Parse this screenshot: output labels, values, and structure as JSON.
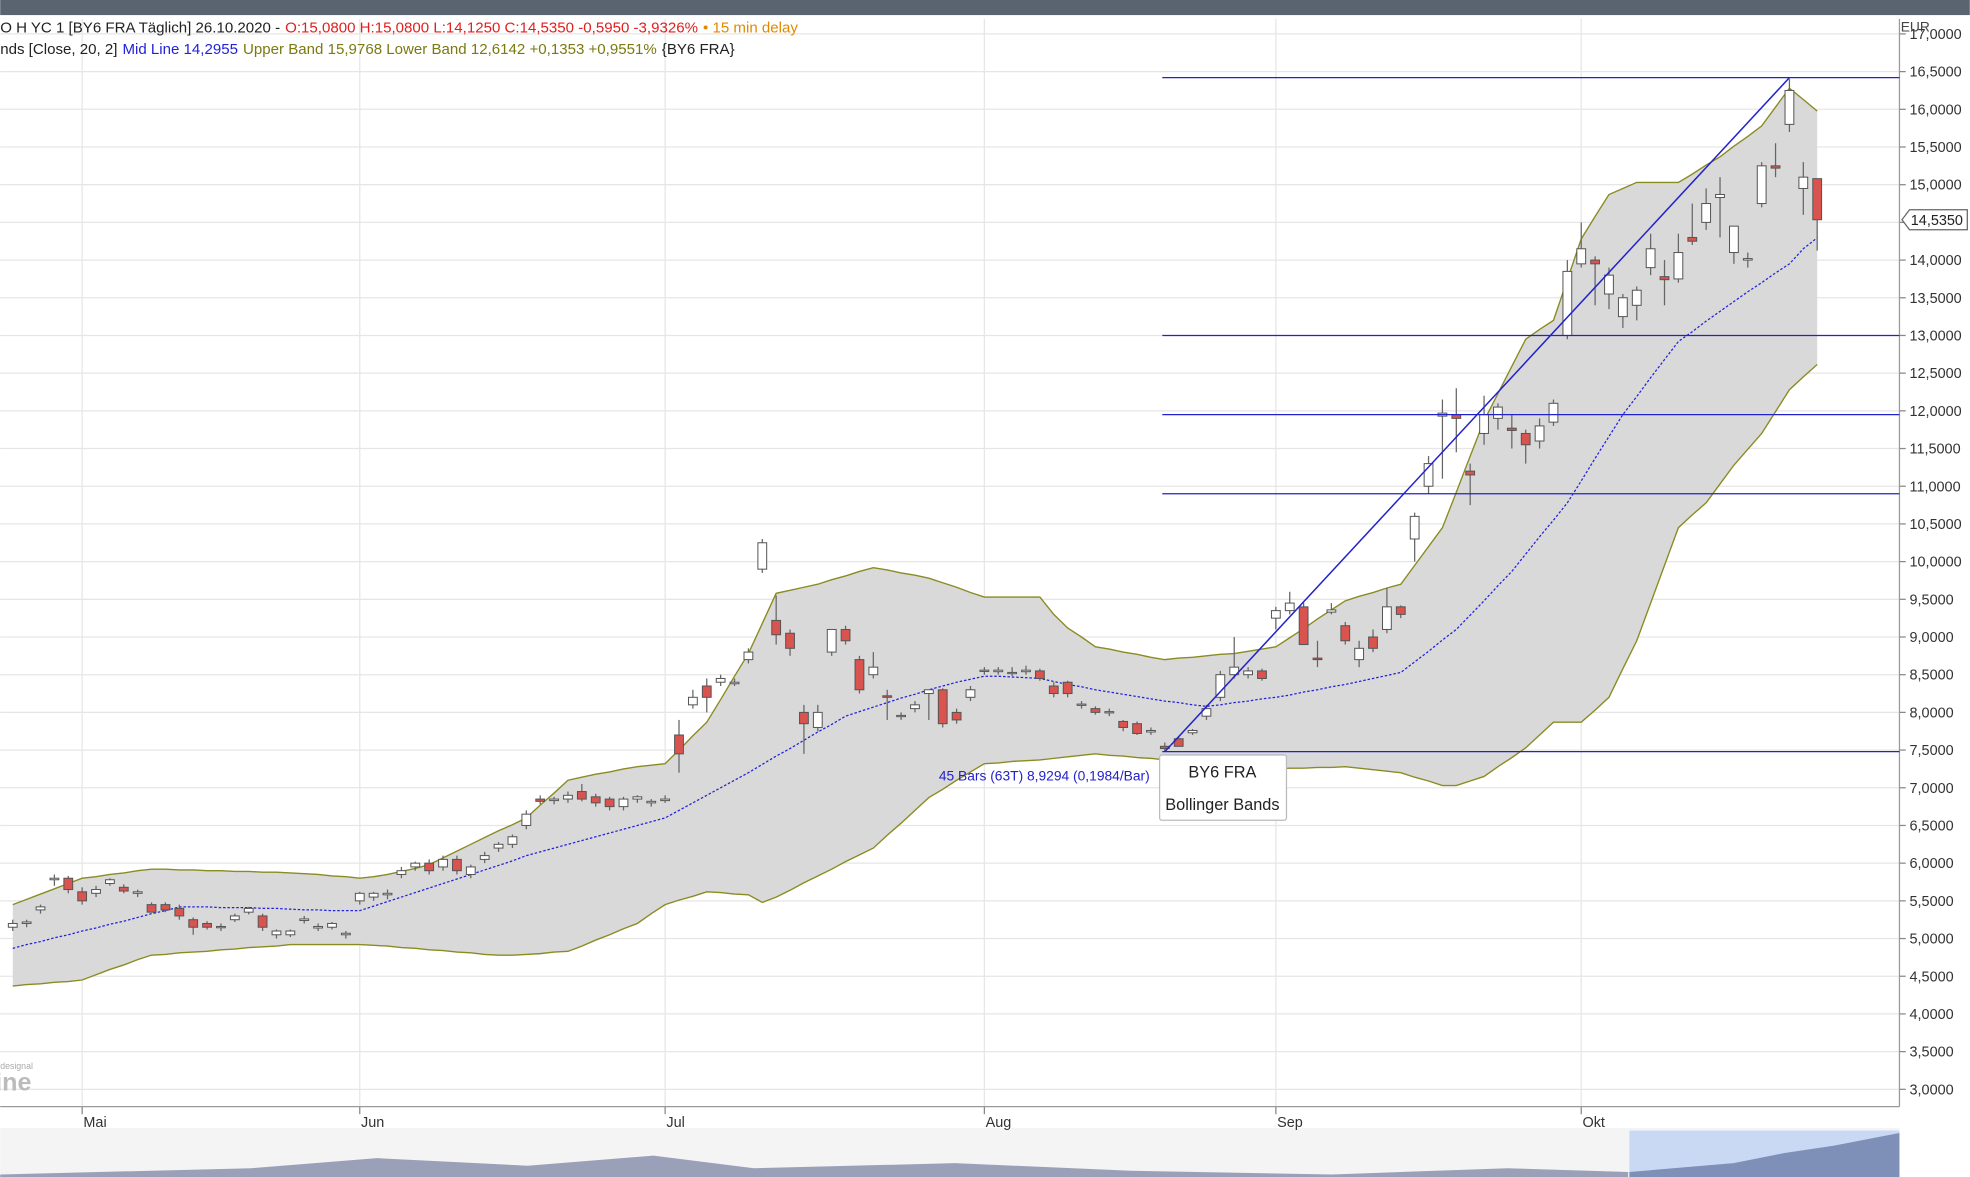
{
  "chart_data": {
    "type": "candlestick",
    "header": {
      "line1": {
        "info": "O H YC 1 [BY6 FRA Täglich] 26.10.2020 -",
        "quote": "O:15,0800 H:15,0800 L:14,1250 C:14,5350 -0,5950 -3,9326%",
        "delay": "• 15 min delay"
      },
      "line2": {
        "study": "nds [Close, 20, 2]",
        "mid": "Mid Line 14,2955",
        "bands": "Upper Band 15,9768 Lower Band 12,6142 +0,1353 +0,9551%",
        "symbol": "{BY6 FRA}"
      }
    },
    "currency": "EUR",
    "last_label": "14,5350",
    "watermark_top": "designal",
    "watermark": "ine",
    "annotation": "45 Bars (63T) 8,9294 (0,1984/Bar)",
    "tooltip": [
      "BY6 FRA",
      "Bollinger Bands"
    ],
    "up_color": "#ffffff",
    "down_color": "#d9534f",
    "mid_color": "#2222dd",
    "band_color": "#8b8b22",
    "fill_color": "#d9d9d9",
    "level_color": "#2222cc",
    "ylim": [
      2.77,
      17.2
    ],
    "yticks": [
      {
        "value": 17,
        "label": "17,0000"
      },
      {
        "value": 16.5,
        "label": "16,5000"
      },
      {
        "value": 16,
        "label": "16,0000"
      },
      {
        "value": 15.5,
        "label": "15,5000"
      },
      {
        "value": 15,
        "label": "15,0000"
      },
      {
        "value": 14.5,
        "label": "14,5000"
      },
      {
        "value": 14,
        "label": "14,0000"
      },
      {
        "value": 13.5,
        "label": "13,5000"
      },
      {
        "value": 13,
        "label": "13,0000"
      },
      {
        "value": 12.5,
        "label": "12,5000"
      },
      {
        "value": 12,
        "label": "12,0000"
      },
      {
        "value": 11.5,
        "label": "11,5000"
      },
      {
        "value": 11,
        "label": "11,0000"
      },
      {
        "value": 10.5,
        "label": "10,5000"
      },
      {
        "value": 10,
        "label": "10,0000"
      },
      {
        "value": 9.5,
        "label": "9,5000"
      },
      {
        "value": 9,
        "label": "9,0000"
      },
      {
        "value": 8.5,
        "label": "8,5000"
      },
      {
        "value": 8,
        "label": "8,0000"
      },
      {
        "value": 7.5,
        "label": "7,5000"
      },
      {
        "value": 7,
        "label": "7,0000"
      },
      {
        "value": 6.5,
        "label": "6,5000"
      },
      {
        "value": 6,
        "label": "6,0000"
      },
      {
        "value": 5.5,
        "label": "5,5000"
      },
      {
        "value": 5,
        "label": "5,0000"
      },
      {
        "value": 4.5,
        "label": "4,5000"
      },
      {
        "value": 4,
        "label": "4,0000"
      },
      {
        "value": 3.5,
        "label": "3,5000"
      },
      {
        "value": 3,
        "label": "3,0000"
      }
    ],
    "categories": [
      null,
      null,
      null,
      null,
      null,
      "Mai",
      null,
      null,
      null,
      null,
      null,
      null,
      null,
      null,
      null,
      null,
      null,
      null,
      null,
      null,
      null,
      null,
      null,
      null,
      null,
      "Jun",
      null,
      null,
      null,
      null,
      null,
      null,
      null,
      null,
      null,
      null,
      null,
      null,
      null,
      null,
      null,
      null,
      null,
      null,
      null,
      null,
      null,
      "Jul",
      null,
      null,
      null,
      null,
      null,
      null,
      null,
      null,
      null,
      null,
      null,
      null,
      null,
      null,
      null,
      null,
      null,
      null,
      null,
      null,
      null,
      null,
      "Aug",
      null,
      null,
      null,
      null,
      null,
      null,
      null,
      null,
      null,
      null,
      null,
      null,
      null,
      null,
      null,
      null,
      null,
      null,
      null,
      null,
      "Sep",
      null,
      null,
      null,
      null,
      null,
      null,
      null,
      null,
      null,
      null,
      null,
      null,
      null,
      null,
      null,
      null,
      null,
      null,
      null,
      null,
      null,
      "Okt",
      null,
      null,
      null,
      null,
      null,
      null,
      null,
      null,
      null,
      null,
      null,
      null,
      null,
      null,
      null,
      null,
      null
    ],
    "candles": [
      [
        5.15,
        5.25,
        5.1,
        5.2
      ],
      [
        5.2,
        5.25,
        5.15,
        5.22
      ],
      [
        5.38,
        5.45,
        5.33,
        5.42
      ],
      [
        5.78,
        5.85,
        5.7,
        5.8
      ],
      [
        5.8,
        5.83,
        5.6,
        5.65
      ],
      [
        5.62,
        5.68,
        5.45,
        5.5
      ],
      [
        5.6,
        5.7,
        5.55,
        5.65
      ],
      [
        5.73,
        5.8,
        5.7,
        5.78
      ],
      [
        5.68,
        5.72,
        5.6,
        5.63
      ],
      [
        5.6,
        5.65,
        5.55,
        5.62
      ],
      [
        5.45,
        5.48,
        5.35,
        5.35
      ],
      [
        5.45,
        5.48,
        5.35,
        5.38
      ],
      [
        5.4,
        5.45,
        5.25,
        5.3
      ],
      [
        5.25,
        5.28,
        5.05,
        5.15
      ],
      [
        5.2,
        5.23,
        5.12,
        5.15
      ],
      [
        5.15,
        5.2,
        5.1,
        5.16
      ],
      [
        5.25,
        5.33,
        5.22,
        5.3
      ],
      [
        5.35,
        5.42,
        5.32,
        5.4
      ],
      [
        5.3,
        5.33,
        5.1,
        5.15
      ],
      [
        5.05,
        5.12,
        5.0,
        5.1
      ],
      [
        5.05,
        5.12,
        5.02,
        5.1
      ],
      [
        5.24,
        5.3,
        5.2,
        5.26
      ],
      [
        5.14,
        5.2,
        5.1,
        5.16
      ],
      [
        5.15,
        5.22,
        5.12,
        5.2
      ],
      [
        5.05,
        5.1,
        5.0,
        5.07
      ],
      [
        5.5,
        5.62,
        5.45,
        5.6
      ],
      [
        5.55,
        5.62,
        5.5,
        5.6
      ],
      [
        5.58,
        5.65,
        5.52,
        5.6
      ],
      [
        5.85,
        5.95,
        5.8,
        5.9
      ],
      [
        5.95,
        6.02,
        5.9,
        6.0
      ],
      [
        6.0,
        6.05,
        5.85,
        5.9
      ],
      [
        5.95,
        6.1,
        5.9,
        6.05
      ],
      [
        6.05,
        6.1,
        5.85,
        5.9
      ],
      [
        5.85,
        5.98,
        5.8,
        5.95
      ],
      [
        6.05,
        6.15,
        6.0,
        6.1
      ],
      [
        6.2,
        6.28,
        6.15,
        6.25
      ],
      [
        6.25,
        6.38,
        6.2,
        6.35
      ],
      [
        6.5,
        6.7,
        6.45,
        6.65
      ],
      [
        6.85,
        6.9,
        6.78,
        6.82
      ],
      [
        6.83,
        6.88,
        6.78,
        6.85
      ],
      [
        6.85,
        6.95,
        6.8,
        6.9
      ],
      [
        6.95,
        7.05,
        6.82,
        6.85
      ],
      [
        6.88,
        6.92,
        6.75,
        6.8
      ],
      [
        6.85,
        6.88,
        6.7,
        6.75
      ],
      [
        6.75,
        6.88,
        6.7,
        6.85
      ],
      [
        6.85,
        6.9,
        6.8,
        6.88
      ],
      [
        6.8,
        6.85,
        6.75,
        6.82
      ],
      [
        6.83,
        6.9,
        6.8,
        6.85
      ],
      [
        7.7,
        7.9,
        7.2,
        7.45
      ],
      [
        8.1,
        8.3,
        8.05,
        8.2
      ],
      [
        8.35,
        8.45,
        8.0,
        8.2
      ],
      [
        8.4,
        8.5,
        8.35,
        8.45
      ],
      [
        8.38,
        8.45,
        8.35,
        8.4
      ],
      [
        8.7,
        8.85,
        8.65,
        8.8
      ],
      [
        9.9,
        10.3,
        9.85,
        10.25
      ],
      [
        9.22,
        9.55,
        8.9,
        9.03
      ],
      [
        9.05,
        9.1,
        8.75,
        8.85
      ],
      [
        8.0,
        8.1,
        7.45,
        7.85
      ],
      [
        7.8,
        8.1,
        7.75,
        8.0
      ],
      [
        8.8,
        9.1,
        8.75,
        9.1
      ],
      [
        9.1,
        9.15,
        8.9,
        8.95
      ],
      [
        8.7,
        8.75,
        8.25,
        8.3
      ],
      [
        8.5,
        8.8,
        8.45,
        8.6
      ],
      [
        8.22,
        8.3,
        7.9,
        8.2
      ],
      [
        7.95,
        8.0,
        7.9,
        7.96
      ],
      [
        8.05,
        8.15,
        8.0,
        8.1
      ],
      [
        8.25,
        8.3,
        7.9,
        8.3
      ],
      [
        8.3,
        8.32,
        7.8,
        7.85
      ],
      [
        8.0,
        8.05,
        7.85,
        7.9
      ],
      [
        8.2,
        8.35,
        8.15,
        8.3
      ],
      [
        8.55,
        8.6,
        8.5,
        8.56
      ],
      [
        8.54,
        8.6,
        8.5,
        8.56
      ],
      [
        8.52,
        8.6,
        8.48,
        8.53
      ],
      [
        8.54,
        8.62,
        8.5,
        8.56
      ],
      [
        8.55,
        8.58,
        8.42,
        8.45
      ],
      [
        8.35,
        8.4,
        8.2,
        8.25
      ],
      [
        8.4,
        8.42,
        8.2,
        8.25
      ],
      [
        8.1,
        8.15,
        8.05,
        8.11
      ],
      [
        8.05,
        8.08,
        7.97,
        8.0
      ],
      [
        8.0,
        8.05,
        7.95,
        8.01
      ],
      [
        7.88,
        7.9,
        7.75,
        7.8
      ],
      [
        7.85,
        7.88,
        7.7,
        7.72
      ],
      [
        7.74,
        7.8,
        7.7,
        7.76
      ],
      [
        7.55,
        7.6,
        7.48,
        7.52
      ],
      [
        7.65,
        7.68,
        7.55,
        7.55
      ],
      [
        7.73,
        7.78,
        7.7,
        7.76
      ],
      [
        7.95,
        8.1,
        7.9,
        8.05
      ],
      [
        8.2,
        8.55,
        8.15,
        8.5
      ],
      [
        8.5,
        9.0,
        8.45,
        8.6
      ],
      [
        8.5,
        8.6,
        8.45,
        8.55
      ],
      [
        8.55,
        8.58,
        8.42,
        8.45
      ],
      [
        9.25,
        9.4,
        9.1,
        9.35
      ],
      [
        9.35,
        9.6,
        9.3,
        9.45
      ],
      [
        9.4,
        9.45,
        8.9,
        8.9
      ],
      [
        8.72,
        8.95,
        8.6,
        8.7
      ],
      [
        9.33,
        9.45,
        9.3,
        9.36
      ],
      [
        9.15,
        9.2,
        8.9,
        8.95
      ],
      [
        8.7,
        8.95,
        8.6,
        8.85
      ],
      [
        9.0,
        9.1,
        8.8,
        8.85
      ],
      [
        9.1,
        9.65,
        9.05,
        9.4
      ],
      [
        9.4,
        9.42,
        9.25,
        9.3
      ],
      [
        10.3,
        10.65,
        10.0,
        10.6
      ],
      [
        11.0,
        11.4,
        10.9,
        11.3
      ],
      [
        11.93,
        12.15,
        11.1,
        11.97
      ],
      [
        11.95,
        12.3,
        11.45,
        11.9
      ],
      [
        11.2,
        11.3,
        10.75,
        11.15
      ],
      [
        11.7,
        12.2,
        11.55,
        11.95
      ],
      [
        11.9,
        12.1,
        11.75,
        12.05
      ],
      [
        11.77,
        11.95,
        11.5,
        11.74
      ],
      [
        11.7,
        11.75,
        11.3,
        11.55
      ],
      [
        11.6,
        11.9,
        11.5,
        11.8
      ],
      [
        11.85,
        12.15,
        11.8,
        12.1
      ],
      [
        13.0,
        14.0,
        12.95,
        13.85
      ],
      [
        13.95,
        14.5,
        13.9,
        14.15
      ],
      [
        14.0,
        14.05,
        13.4,
        13.95
      ],
      [
        13.55,
        13.9,
        13.35,
        13.8
      ],
      [
        13.25,
        13.55,
        13.1,
        13.5
      ],
      [
        13.4,
        13.65,
        13.2,
        13.6
      ],
      [
        13.9,
        14.35,
        13.8,
        14.15
      ],
      [
        13.78,
        14.0,
        13.4,
        13.74
      ],
      [
        13.75,
        14.35,
        13.7,
        14.1
      ],
      [
        14.3,
        14.75,
        14.2,
        14.25
      ],
      [
        14.5,
        14.95,
        14.4,
        14.75
      ],
      [
        14.83,
        15.1,
        14.3,
        14.87
      ],
      [
        14.1,
        14.45,
        13.95,
        14.45
      ],
      [
        14.0,
        14.1,
        13.9,
        14.02
      ],
      [
        14.75,
        15.3,
        14.7,
        15.25
      ],
      [
        15.25,
        15.55,
        15.1,
        15.22
      ],
      [
        15.8,
        16.4,
        15.7,
        16.25
      ],
      [
        14.95,
        15.3,
        14.6,
        15.1
      ],
      [
        15.08,
        15.08,
        14.125,
        14.535
      ]
    ],
    "mid": [
      4.87,
      4.92,
      4.96,
      5.01,
      5.05,
      5.1,
      5.14,
      5.19,
      5.23,
      5.28,
      5.33,
      5.37,
      5.42,
      5.42,
      5.42,
      5.41,
      5.41,
      5.41,
      5.4,
      5.4,
      5.39,
      5.38,
      5.38,
      5.37,
      5.37,
      5.37,
      5.43,
      5.49,
      5.55,
      5.61,
      5.67,
      5.73,
      5.79,
      5.85,
      5.91,
      5.97,
      6.03,
      6.1,
      6.15,
      6.2,
      6.25,
      6.3,
      6.35,
      6.4,
      6.45,
      6.5,
      6.55,
      6.6,
      6.7,
      6.8,
      6.9,
      7.0,
      7.1,
      7.2,
      7.31,
      7.42,
      7.52,
      7.63,
      7.74,
      7.84,
      7.95,
      8.01,
      8.07,
      8.13,
      8.19,
      8.24,
      8.3,
      8.35,
      8.4,
      8.44,
      8.48,
      8.48,
      8.47,
      8.46,
      8.45,
      8.41,
      8.37,
      8.34,
      8.3,
      8.27,
      8.24,
      8.21,
      8.18,
      8.15,
      8.13,
      8.1,
      8.08,
      8.1,
      8.13,
      8.15,
      8.18,
      8.2,
      8.23,
      8.27,
      8.3,
      8.34,
      8.37,
      8.41,
      8.45,
      8.49,
      8.53,
      8.67,
      8.81,
      8.96,
      9.1,
      9.29,
      9.48,
      9.68,
      9.87,
      10.1,
      10.33,
      10.55,
      10.78,
      11.07,
      11.37,
      11.66,
      11.95,
      12.19,
      12.44,
      12.68,
      12.92,
      13.05,
      13.19,
      13.32,
      13.45,
      13.58,
      13.7,
      13.83,
      13.95,
      14.15,
      14.2955
    ],
    "upper": [
      5.45,
      5.52,
      5.59,
      5.66,
      5.73,
      5.8,
      5.82,
      5.85,
      5.87,
      5.9,
      5.92,
      5.92,
      5.91,
      5.91,
      5.9,
      5.9,
      5.89,
      5.89,
      5.88,
      5.88,
      5.87,
      5.86,
      5.85,
      5.83,
      5.82,
      5.8,
      5.82,
      5.85,
      5.89,
      5.93,
      5.98,
      6.07,
      6.16,
      6.25,
      6.34,
      6.43,
      6.51,
      6.6,
      6.77,
      6.93,
      7.1,
      7.14,
      7.18,
      7.21,
      7.25,
      7.28,
      7.3,
      7.32,
      7.5,
      7.69,
      7.87,
      8.17,
      8.48,
      8.78,
      9.18,
      9.58,
      9.62,
      9.66,
      9.7,
      9.76,
      9.81,
      9.87,
      9.92,
      9.89,
      9.85,
      9.82,
      9.78,
      9.72,
      9.66,
      9.59,
      9.53,
      9.53,
      9.53,
      9.53,
      9.53,
      9.3,
      9.12,
      9.0,
      8.87,
      8.84,
      8.8,
      8.77,
      8.73,
      8.7,
      8.72,
      8.73,
      8.75,
      8.77,
      8.78,
      8.81,
      8.84,
      8.87,
      8.99,
      9.11,
      9.24,
      9.36,
      9.48,
      9.54,
      9.59,
      9.65,
      9.7,
      9.95,
      10.2,
      10.45,
      10.92,
      11.4,
      11.87,
      12.23,
      12.59,
      12.95,
      13.08,
      13.2,
      13.74,
      14.28,
      14.58,
      14.87,
      14.95,
      15.03,
      15.03,
      15.03,
      15.03,
      15.14,
      15.26,
      15.37,
      15.51,
      15.64,
      15.78,
      16.03,
      16.28,
      16.13,
      15.9768
    ],
    "lower": [
      4.37,
      4.39,
      4.4,
      4.42,
      4.43,
      4.45,
      4.52,
      4.59,
      4.65,
      4.72,
      4.78,
      4.79,
      4.81,
      4.82,
      4.83,
      4.85,
      4.86,
      4.88,
      4.89,
      4.9,
      4.92,
      4.92,
      4.92,
      4.92,
      4.92,
      4.92,
      4.91,
      4.9,
      4.88,
      4.87,
      4.85,
      4.84,
      4.82,
      4.81,
      4.79,
      4.78,
      4.78,
      4.79,
      4.8,
      4.82,
      4.83,
      4.9,
      4.98,
      5.05,
      5.13,
      5.2,
      5.33,
      5.45,
      5.51,
      5.56,
      5.62,
      5.61,
      5.59,
      5.58,
      5.48,
      5.55,
      5.64,
      5.74,
      5.83,
      5.92,
      6.02,
      6.11,
      6.2,
      6.37,
      6.53,
      6.7,
      6.87,
      6.98,
      7.1,
      7.21,
      7.32,
      7.33,
      7.35,
      7.36,
      7.37,
      7.39,
      7.41,
      7.43,
      7.45,
      7.43,
      7.42,
      7.4,
      7.39,
      7.37,
      7.33,
      7.29,
      7.25,
      7.25,
      7.25,
      7.25,
      7.25,
      7.25,
      7.26,
      7.26,
      7.27,
      7.27,
      7.28,
      7.26,
      7.24,
      7.22,
      7.2,
      7.14,
      7.09,
      7.03,
      7.03,
      7.09,
      7.15,
      7.28,
      7.4,
      7.53,
      7.7,
      7.87,
      7.87,
      7.87,
      8.03,
      8.2,
      8.58,
      8.95,
      9.45,
      9.95,
      10.45,
      10.62,
      10.78,
      11.03,
      11.28,
      11.49,
      11.7,
      11.99,
      12.28,
      12.45,
      12.6142
    ],
    "levels": [
      16.42,
      13.0,
      11.95,
      10.9,
      7.48
    ],
    "trend_line": [
      7.48,
      16.42
    ]
  }
}
